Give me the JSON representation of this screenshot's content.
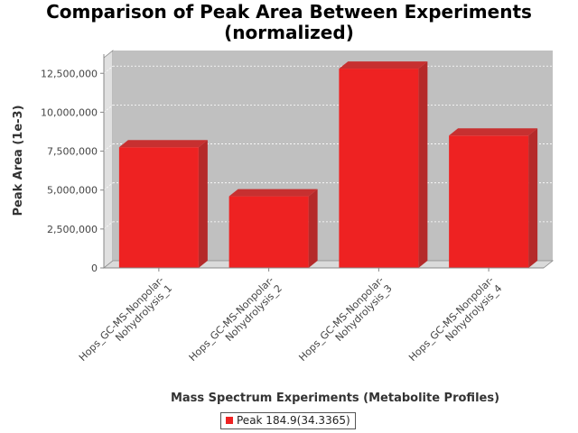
{
  "chart_data": {
    "type": "bar",
    "title": "Comparison of Peak Area Between Experiments (normalized)",
    "title_lines": [
      "Comparison of Peak Area Between Experiments",
      "(normalized)"
    ],
    "xlabel": "Mass Spectrum Experiments (Metabolite Profiles)",
    "ylabel": "Peak Area (1e-3)",
    "ylim": [
      0,
      13500000
    ],
    "yticks": [
      0,
      2500000,
      5000000,
      7500000,
      10000000,
      12500000
    ],
    "ytick_labels": [
      "0",
      "2,500,000",
      "5,000,000",
      "7,500,000",
      "10,000,000",
      "12,500,000"
    ],
    "categories": [
      "Hops_GC-MS-Nonpolar-Nohydrolysis_1",
      "Hops_GC-MS-Nonpolar-Nohydrolysis_2",
      "Hops_GC-MS-Nonpolar-Nohydrolysis_3",
      "Hops_GC-MS-Nonpolar-Nohydrolysis_4"
    ],
    "category_lines": [
      [
        "Hops_GC-MS-Nonpolar-",
        "Nohydrolysis_1"
      ],
      [
        "Hops_GC-MS-Nonpolar-",
        "Nohydrolysis_2"
      ],
      [
        "Hops_GC-MS-Nonpolar-",
        "Nohydrolysis_3"
      ],
      [
        "Hops_GC-MS-Nonpolar-",
        "Nohydrolysis_4"
      ]
    ],
    "series": [
      {
        "name": "Peak 184.9(34.3365)",
        "values": [
          7750000,
          4600000,
          12800000,
          8500000
        ],
        "color": "#ee2222"
      }
    ],
    "legend_position": "bottom",
    "grid": true,
    "plot_background": "#c0c0c0"
  }
}
